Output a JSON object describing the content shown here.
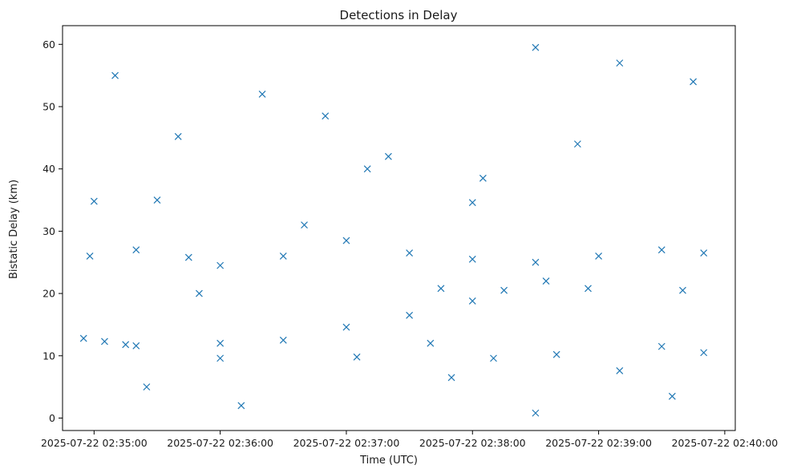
{
  "chart_data": {
    "type": "scatter",
    "title": "Detections in Delay",
    "xlabel": "Time (UTC)",
    "ylabel": "Bistatic Delay (km)",
    "x_ticks": [
      {
        "value": "2025-07-22 02:35:00",
        "label": "2025-07-22 02:35:00"
      },
      {
        "value": "2025-07-22 02:36:00",
        "label": "2025-07-22 02:36:00"
      },
      {
        "value": "2025-07-22 02:37:00",
        "label": "2025-07-22 02:37:00"
      },
      {
        "value": "2025-07-22 02:38:00",
        "label": "2025-07-22 02:38:00"
      },
      {
        "value": "2025-07-22 02:39:00",
        "label": "2025-07-22 02:39:00"
      },
      {
        "value": "2025-07-22 02:40:00",
        "label": "2025-07-22 02:40:00"
      }
    ],
    "y_ticks": [
      "0",
      "10",
      "20",
      "30",
      "40",
      "50",
      "60"
    ],
    "xlim": [
      "2025-07-22 02:34:45",
      "2025-07-22 02:40:05"
    ],
    "ylim": [
      -2,
      63
    ],
    "grid": false,
    "marker": "x",
    "color": "#1f77b4",
    "series": [
      {
        "values": [
          [
            "2025-07-22 02:34:55",
            12.8
          ],
          [
            "2025-07-22 02:35:05",
            12.3
          ],
          [
            "2025-07-22 02:35:15",
            11.8
          ],
          [
            "2025-07-22 02:35:20",
            11.6
          ],
          [
            "2025-07-22 02:36:00",
            12.0
          ],
          [
            "2025-07-22 02:36:30",
            12.5
          ],
          [
            "2025-07-22 02:37:00",
            14.6
          ],
          [
            "2025-07-22 02:37:30",
            16.5
          ],
          [
            "2025-07-22 02:38:00",
            18.8
          ],
          [
            "2025-07-22 02:38:15",
            20.5
          ],
          [
            "2025-07-22 02:38:35",
            22.0
          ],
          [
            "2025-07-22 02:34:58",
            26.0
          ],
          [
            "2025-07-22 02:35:20",
            27.0
          ],
          [
            "2025-07-22 02:35:45",
            25.8
          ],
          [
            "2025-07-22 02:36:00",
            24.5
          ],
          [
            "2025-07-22 02:36:30",
            26.0
          ],
          [
            "2025-07-22 02:37:00",
            28.5
          ],
          [
            "2025-07-22 02:37:30",
            26.5
          ],
          [
            "2025-07-22 02:38:00",
            25.5
          ],
          [
            "2025-07-22 02:38:30",
            25.0
          ],
          [
            "2025-07-22 02:39:00",
            26.0
          ],
          [
            "2025-07-22 02:39:30",
            27.0
          ],
          [
            "2025-07-22 02:39:50",
            26.5
          ],
          [
            "2025-07-22 02:35:00",
            34.8
          ],
          [
            "2025-07-22 02:35:30",
            35.0
          ],
          [
            "2025-07-22 02:38:00",
            34.6
          ],
          [
            "2025-07-22 02:36:00",
            9.6
          ],
          [
            "2025-07-22 02:37:05",
            9.8
          ],
          [
            "2025-07-22 02:37:40",
            12.0
          ],
          [
            "2025-07-22 02:38:10",
            9.6
          ],
          [
            "2025-07-22 02:38:40",
            10.2
          ],
          [
            "2025-07-22 02:39:10",
            7.6
          ],
          [
            "2025-07-22 02:39:30",
            11.5
          ],
          [
            "2025-07-22 02:39:50",
            10.5
          ],
          [
            "2025-07-22 02:37:45",
            20.8
          ],
          [
            "2025-07-22 02:38:55",
            20.8
          ],
          [
            "2025-07-22 02:39:40",
            20.5
          ],
          [
            "2025-07-22 02:35:10",
            55.0
          ],
          [
            "2025-07-22 02:35:40",
            45.2
          ],
          [
            "2025-07-22 02:36:20",
            52.0
          ],
          [
            "2025-07-22 02:36:50",
            48.5
          ],
          [
            "2025-07-22 02:37:20",
            42.0
          ],
          [
            "2025-07-22 02:38:05",
            38.5
          ],
          [
            "2025-07-22 02:38:30",
            59.5
          ],
          [
            "2025-07-22 02:39:10",
            57.0
          ],
          [
            "2025-07-22 02:39:45",
            54.0
          ],
          [
            "2025-07-22 02:35:25",
            5.0
          ],
          [
            "2025-07-22 02:36:10",
            2.0
          ],
          [
            "2025-07-22 02:37:50",
            6.5
          ],
          [
            "2025-07-22 02:38:30",
            0.8
          ],
          [
            "2025-07-22 02:39:35",
            3.5
          ],
          [
            "2025-07-22 02:35:50",
            20.0
          ],
          [
            "2025-07-22 02:36:40",
            31.0
          ],
          [
            "2025-07-22 02:37:10",
            40.0
          ],
          [
            "2025-07-22 02:38:50",
            44.0
          ]
        ]
      }
    ]
  }
}
